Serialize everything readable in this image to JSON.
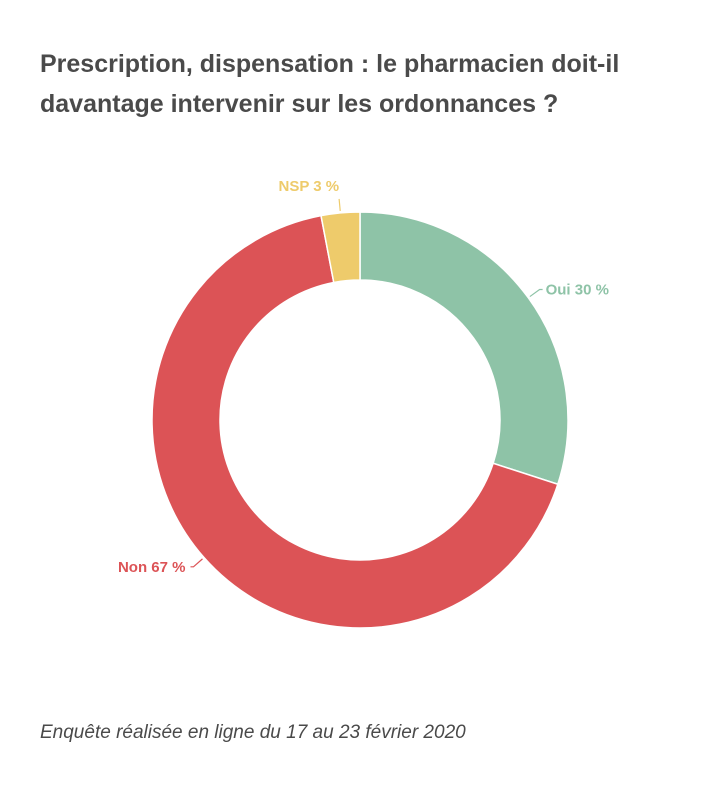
{
  "title": "Prescription, dispensation : le pharmacien doit-il davantage intervenir sur les ordonnances ?",
  "footnote": "Enquête réalisée en ligne du 17 au 23 février 2020",
  "chart_data": {
    "type": "pie",
    "donut": true,
    "slices": [
      {
        "label": "Oui",
        "value": 30,
        "display": "Oui 30 %",
        "color": "#8ec3a7"
      },
      {
        "label": "Non",
        "value": 67,
        "display": "Non 67 %",
        "color": "#dc5356"
      },
      {
        "label": "NSP",
        "value": 3,
        "display": "NSP 3 %",
        "color": "#eecb6b"
      }
    ]
  }
}
